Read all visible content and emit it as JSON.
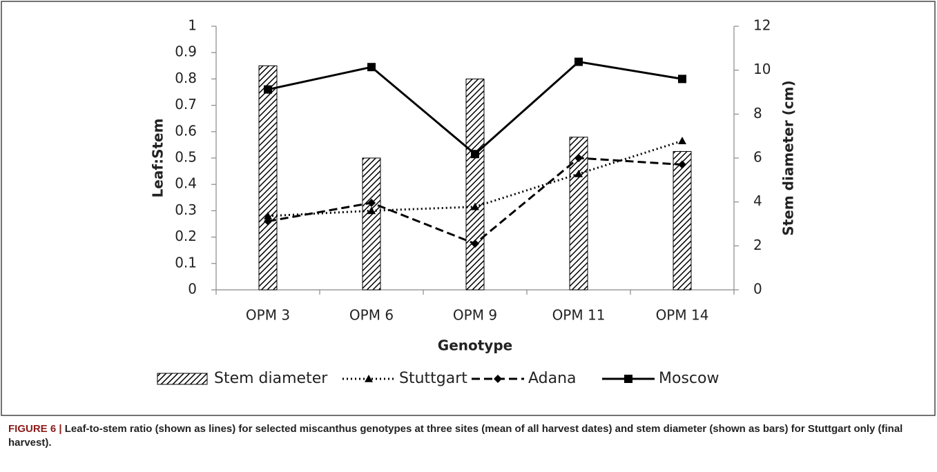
{
  "chart_data": {
    "type": "bar-line",
    "y_label": "Leaf:Stem",
    "y2_label": "Stem diameter (cm)",
    "x_label": "Genotype",
    "categories": [
      "OPM 3",
      "OPM 6",
      "OPM 9",
      "OPM 11",
      "OPM 14"
    ],
    "ylim": [
      0,
      1
    ],
    "yticks": [
      0,
      0.1,
      0.2,
      0.3,
      0.4,
      0.5,
      0.6,
      0.7,
      0.8,
      0.9,
      1
    ],
    "y2lim": [
      0,
      12
    ],
    "y2ticks": [
      0,
      2,
      4,
      6,
      8,
      10,
      12
    ],
    "series": [
      {
        "name": "Stem diameter",
        "type": "bar",
        "axis": "y2",
        "color": "#000000",
        "values": [
          10.2,
          6.0,
          9.6,
          6.95,
          6.3
        ]
      },
      {
        "name": "Stuttgart",
        "type": "line",
        "color": "#000000",
        "dash": "dotted",
        "marker": "triangle",
        "values": [
          0.28,
          0.3,
          0.315,
          0.44,
          0.565
        ]
      },
      {
        "name": "Adana",
        "type": "line",
        "color": "#000000",
        "dash": "dashed",
        "marker": "diamond",
        "values": [
          0.26,
          0.33,
          0.175,
          0.5,
          0.475
        ]
      },
      {
        "name": "Moscow",
        "type": "line",
        "color": "#000000",
        "dash": "solid",
        "marker": "square",
        "values": [
          0.76,
          0.845,
          0.515,
          0.865,
          0.8
        ]
      }
    ],
    "figure_label": "FIGURE 6 |",
    "caption": "Leaf-to-stem ratio (shown as lines) for selected miscanthus genotypes at three sites (mean of all harvest dates) and stem diameter (shown as bars) for Stuttgart only (final harvest)."
  }
}
